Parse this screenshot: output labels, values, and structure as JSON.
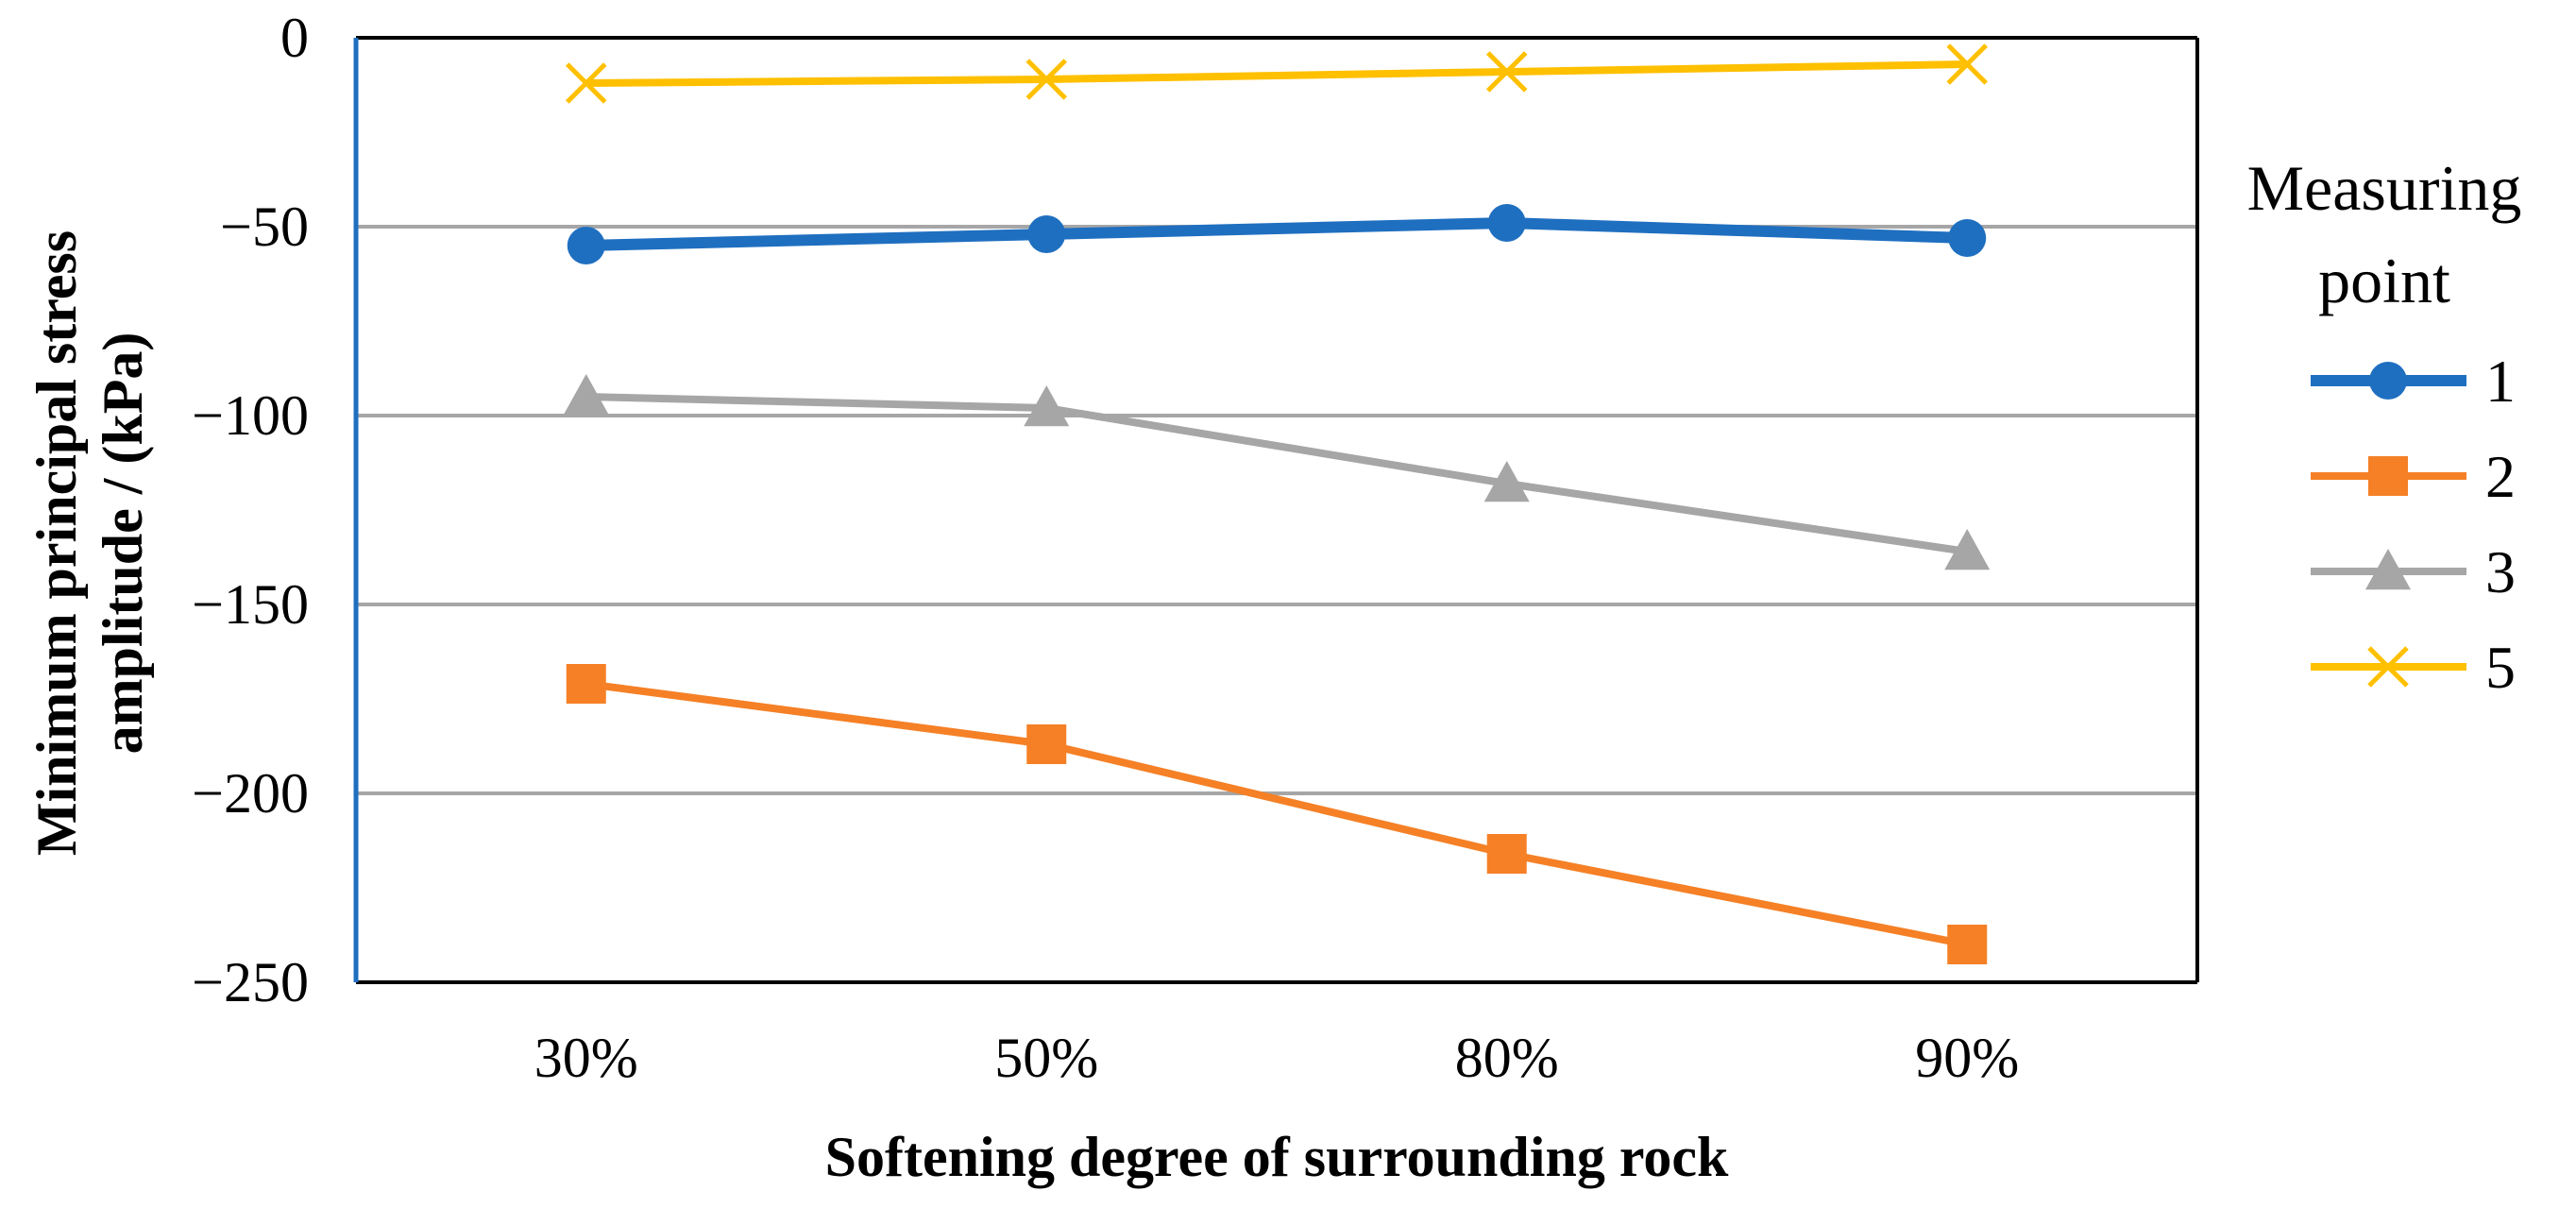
{
  "chart_data": {
    "type": "line",
    "title": "",
    "xlabel": "Softening degree of surrounding rock",
    "ylabel_lines": [
      "Minimum principal stress",
      "amplitude / (kPa)"
    ],
    "categories": [
      "30%",
      "50%",
      "80%",
      "90%"
    ],
    "ylim": [
      -250,
      0
    ],
    "yticks": [
      0,
      -50,
      -100,
      -150,
      -200,
      -250
    ],
    "ytick_labels": [
      "0",
      "−50",
      "−100",
      "−150",
      "−200",
      "−250"
    ],
    "grid": true,
    "legend": {
      "position": "right",
      "title_lines": [
        "Measuring",
        "point"
      ]
    },
    "series": [
      {
        "name": "1",
        "color": "#1F6FC0",
        "marker": "circle",
        "values": [
          -55,
          -52,
          -49,
          -53
        ]
      },
      {
        "name": "2",
        "color": "#F58026",
        "marker": "square",
        "values": [
          -171,
          -187,
          -216,
          -240
        ]
      },
      {
        "name": "3",
        "color": "#A6A6A6",
        "marker": "triangle",
        "values": [
          -95,
          -98,
          -118,
          -136
        ]
      },
      {
        "name": "5",
        "color": "#FFC000",
        "marker": "x",
        "values": [
          -12,
          -11,
          -9,
          -7
        ]
      }
    ]
  }
}
